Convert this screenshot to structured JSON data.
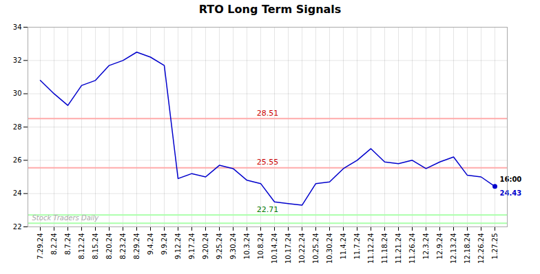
{
  "chart_data": {
    "type": "line",
    "title": "RTO Long Term Signals",
    "categories": [
      "7.29.24",
      "8.2.24",
      "8.7.24",
      "8.12.24",
      "8.15.24",
      "8.20.24",
      "8.23.24",
      "8.29.24",
      "9.4.24",
      "9.9.24",
      "9.12.24",
      "9.17.24",
      "9.20.24",
      "9.25.24",
      "9.30.24",
      "10.3.24",
      "10.8.24",
      "10.14.24",
      "10.17.24",
      "10.22.24",
      "10.25.24",
      "10.30.24",
      "11.4.24",
      "11.7.24",
      "11.12.24",
      "11.18.24",
      "11.21.24",
      "11.26.24",
      "12.3.24",
      "12.9.24",
      "12.13.24",
      "12.18.24",
      "12.26.24",
      "1.27.25"
    ],
    "values": [
      30.8,
      30.0,
      29.3,
      30.5,
      30.8,
      31.7,
      32.0,
      32.5,
      32.2,
      31.7,
      24.9,
      25.2,
      25.0,
      25.7,
      25.5,
      24.8,
      24.6,
      23.5,
      23.4,
      23.3,
      24.6,
      24.7,
      25.5,
      26.0,
      26.7,
      25.9,
      25.8,
      26.0,
      25.5,
      25.9,
      26.2,
      25.1,
      25.0,
      24.43
    ],
    "color": "#0000cc",
    "marker": "last_point",
    "reference_lines": [
      {
        "value": 28.51,
        "color": "#ffaaaa",
        "label": "28.51",
        "label_color": "#cc0000"
      },
      {
        "value": 25.55,
        "color": "#ffaaaa",
        "label": "25.55",
        "label_color": "#cc0000"
      },
      {
        "value": 22.71,
        "color": "#aaffaa",
        "label": "22.71",
        "label_color": "#007700"
      },
      {
        "value": 22.22,
        "color": "#aaffaa"
      }
    ],
    "annotations": [
      {
        "text": "16:00",
        "x": "1.27.25",
        "y": 24.43,
        "color": "#000000"
      },
      {
        "text": "24.43",
        "x": "1.27.25",
        "y": 24.43,
        "color": "#0000cc"
      },
      {
        "text": "Stock Traders Daily",
        "position": "bottom-left",
        "color": "#aaaaaa"
      }
    ],
    "ylim": [
      22,
      34
    ],
    "yticks": [
      22,
      24,
      26,
      28,
      30,
      32,
      34
    ],
    "grid": true
  }
}
